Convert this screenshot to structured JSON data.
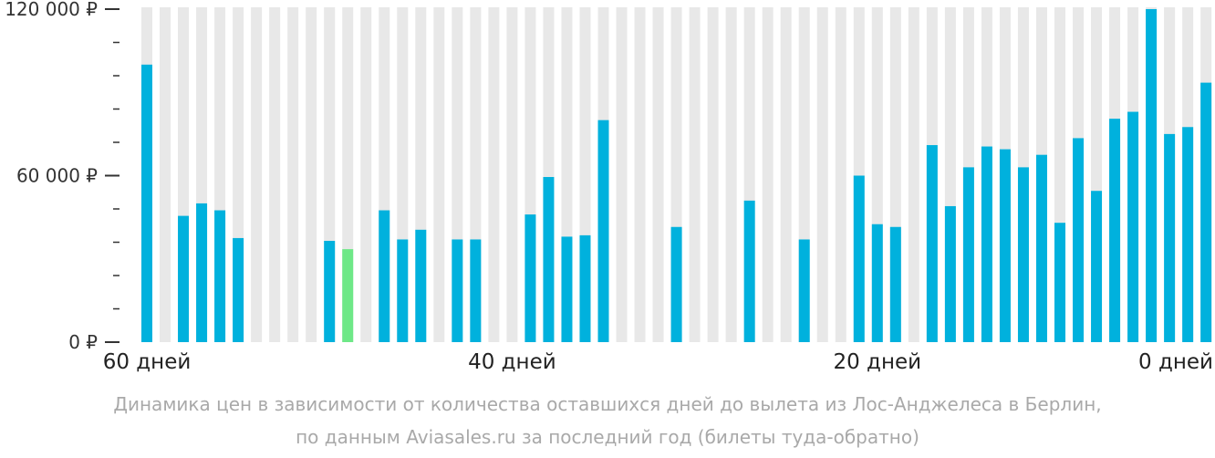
{
  "chart_data": {
    "type": "bar",
    "title": "",
    "xlabel": "",
    "ylabel": "",
    "ylim": [
      0,
      120000
    ],
    "y_ticks": [
      {
        "value": 0,
        "label": "0 ₽"
      },
      {
        "value": 60000,
        "label": "60 000 ₽"
      },
      {
        "value": 120000,
        "label": "120 000 ₽"
      }
    ],
    "y_minor_step": 12000,
    "x_ticks": [
      {
        "day": 60,
        "label": "60 дней"
      },
      {
        "day": 40,
        "label": "40 дней"
      },
      {
        "day": 20,
        "label": "20 дней"
      },
      {
        "day": 0,
        "label": "0 дней"
      }
    ],
    "x_range": [
      60,
      0
    ],
    "grid": true,
    "colors": {
      "bar": "#00b1dd",
      "highlight": "#6ee887",
      "background_column": "#e8e8e8"
    },
    "highlight_day": 49,
    "days": [
      60,
      59,
      58,
      57,
      56,
      55,
      54,
      53,
      52,
      51,
      50,
      49,
      48,
      47,
      46,
      45,
      44,
      43,
      42,
      41,
      40,
      39,
      38,
      37,
      36,
      35,
      34,
      33,
      32,
      31,
      30,
      29,
      28,
      27,
      26,
      25,
      24,
      23,
      22,
      21,
      20,
      19,
      18,
      17,
      16,
      15,
      14,
      13,
      12,
      11,
      10,
      9,
      8,
      7,
      6,
      5,
      4,
      3,
      2,
      1,
      0
    ],
    "values": [
      100000,
      null,
      45500,
      50000,
      47500,
      37500,
      null,
      null,
      null,
      null,
      36500,
      33500,
      null,
      47500,
      37000,
      40500,
      null,
      37000,
      37000,
      null,
      null,
      46000,
      59500,
      38000,
      38500,
      80000,
      null,
      null,
      null,
      41500,
      null,
      null,
      null,
      51000,
      null,
      null,
      37000,
      null,
      null,
      60000,
      42500,
      41500,
      null,
      71000,
      49000,
      63000,
      70500,
      69500,
      63000,
      67500,
      43000,
      73500,
      54500,
      80500,
      83000,
      120000,
      75000,
      77500,
      93500,
      null,
      null
    ]
  },
  "caption": {
    "line1": "Динамика цен в зависимости от количества оставшихся дней до вылета из Лос-Анджелеса в Берлин,",
    "line2": "по данным Aviasales.ru за последний год (билеты туда-обратно)"
  }
}
